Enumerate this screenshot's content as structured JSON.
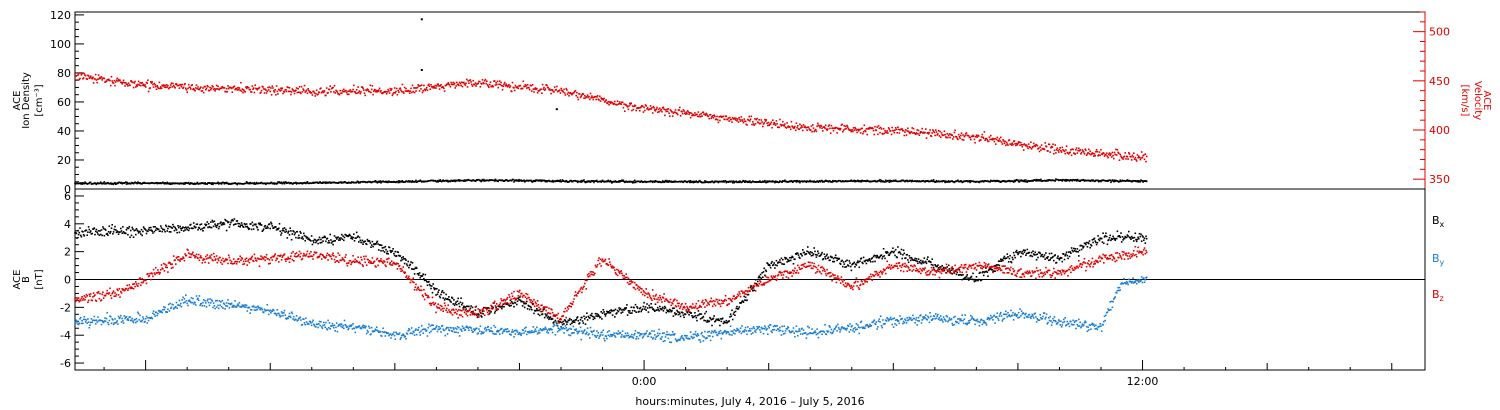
{
  "chart_data": [
    {
      "type": "scatter",
      "panel": "top",
      "left_axis": {
        "title_lines": [
          "ACE",
          "Ion Density"
        ],
        "unit": "[cm⁻³]",
        "ylim": [
          0,
          122
        ],
        "ticks": [
          0,
          20,
          40,
          60,
          80,
          100,
          120
        ],
        "minor_step": 5,
        "color": "#000000"
      },
      "right_axis": {
        "title_lines": [
          "ACE",
          "Velocity"
        ],
        "unit": "[km/s]",
        "ylim": [
          340,
          520
        ],
        "ticks": [
          350,
          400,
          450,
          500
        ],
        "minor_step": 10,
        "color": "#e00000"
      },
      "series": [
        {
          "color": "#000000",
          "axis": "left",
          "xrange": [
            -13.7,
            12.1
          ],
          "points": [
            [
              -13.5,
              4
            ],
            [
              -12,
              4
            ],
            [
              -10,
              3.8
            ],
            [
              -8,
              4.2
            ],
            [
              -6,
              5
            ],
            [
              -4,
              6
            ],
            [
              -2,
              5.5
            ],
            [
              0,
              5
            ],
            [
              2,
              5
            ],
            [
              4,
              5.2
            ],
            [
              6,
              5.5
            ],
            [
              8,
              5.2
            ],
            [
              10,
              6
            ],
            [
              12,
              5.5
            ]
          ],
          "outliers": [
            [
              -5.35,
              117
            ],
            [
              -5.35,
              82
            ],
            [
              -2.1,
              55
            ]
          ]
        },
        {
          "color": "#e00000",
          "axis": "right",
          "xrange": [
            -13.7,
            12.1
          ],
          "points": [
            [
              -13.7,
              455
            ],
            [
              -12,
              445
            ],
            [
              -10,
              442
            ],
            [
              -8,
              440
            ],
            [
              -6,
              440
            ],
            [
              -4,
              448
            ],
            [
              -2,
              440
            ],
            [
              -1,
              430
            ],
            [
              0,
              422
            ],
            [
              2,
              412
            ],
            [
              4,
              402
            ],
            [
              6,
              400
            ],
            [
              8,
              392
            ],
            [
              10,
              380
            ],
            [
              12,
              372
            ]
          ]
        }
      ]
    },
    {
      "type": "scatter",
      "panel": "bottom",
      "left_axis": {
        "title_lines": [
          "ACE",
          "B"
        ],
        "unit": "[nT]",
        "ylim": [
          -6.5,
          6.5
        ],
        "ticks": [
          -6,
          -4,
          -2,
          0,
          2,
          4,
          6
        ],
        "minor_step": 0.5,
        "color": "#000000"
      },
      "zero_line": true,
      "legend": [
        {
          "base": "B",
          "sub": "x",
          "color": "#000000"
        },
        {
          "base": "B",
          "sub": "y",
          "color": "#1a7fd4"
        },
        {
          "base": "B",
          "sub": "z",
          "color": "#e00000"
        }
      ],
      "series": [
        {
          "name": "Bx",
          "color": "#000000",
          "xrange": [
            -13.7,
            12.1
          ],
          "points": [
            [
              -13.7,
              3.3
            ],
            [
              -12.8,
              3.5
            ],
            [
              -11,
              3.7
            ],
            [
              -10,
              4
            ],
            [
              -9,
              3.8
            ],
            [
              -8,
              2.8
            ],
            [
              -7,
              3
            ],
            [
              -6,
              2
            ],
            [
              -5,
              -0.8
            ],
            [
              -4,
              -2.5
            ],
            [
              -3,
              -1.5
            ],
            [
              -2,
              -3.2
            ],
            [
              -1,
              -2.5
            ],
            [
              0,
              -2
            ],
            [
              1,
              -2.5
            ],
            [
              2,
              -3
            ],
            [
              3,
              1
            ],
            [
              4,
              2
            ],
            [
              5,
              1
            ],
            [
              6,
              2
            ],
            [
              7,
              1
            ],
            [
              8,
              0
            ],
            [
              9,
              2
            ],
            [
              10,
              1.5
            ],
            [
              11,
              3
            ],
            [
              12,
              3
            ]
          ]
        },
        {
          "name": "By",
          "color": "#1a7fd4",
          "xrange": [
            -13.7,
            12.1
          ],
          "points": [
            [
              -13.7,
              -3
            ],
            [
              -12,
              -2.8
            ],
            [
              -11,
              -1.5
            ],
            [
              -10,
              -1.8
            ],
            [
              -9,
              -2.2
            ],
            [
              -8,
              -3.2
            ],
            [
              -7,
              -3.4
            ],
            [
              -6,
              -4
            ],
            [
              -5,
              -3.5
            ],
            [
              -4,
              -3.6
            ],
            [
              -3,
              -3.8
            ],
            [
              -2,
              -3.5
            ],
            [
              -1,
              -4
            ],
            [
              0,
              -4
            ],
            [
              1,
              -4.2
            ],
            [
              2,
              -3.8
            ],
            [
              3,
              -3.5
            ],
            [
              4,
              -3.8
            ],
            [
              5,
              -3.5
            ],
            [
              6,
              -3
            ],
            [
              7,
              -2.8
            ],
            [
              8,
              -3
            ],
            [
              9,
              -2.5
            ],
            [
              10,
              -3
            ],
            [
              11,
              -3.5
            ],
            [
              11.5,
              -0.2
            ],
            [
              12,
              0
            ]
          ]
        },
        {
          "name": "Bz",
          "color": "#e00000",
          "xrange": [
            -13.7,
            12.1
          ],
          "points": [
            [
              -13.7,
              -1.5
            ],
            [
              -12.5,
              -0.8
            ],
            [
              -11,
              1.8
            ],
            [
              -10,
              1.3
            ],
            [
              -9,
              1.5
            ],
            [
              -8,
              1.8
            ],
            [
              -7,
              1.3
            ],
            [
              -6,
              1.2
            ],
            [
              -5,
              -2
            ],
            [
              -4,
              -2.5
            ],
            [
              -3,
              -1
            ],
            [
              -2,
              -2.8
            ],
            [
              -1,
              1.5
            ],
            [
              0,
              -1
            ],
            [
              1,
              -2
            ],
            [
              2,
              -1.5
            ],
            [
              3,
              0
            ],
            [
              4,
              1
            ],
            [
              5,
              -0.5
            ],
            [
              6,
              1
            ],
            [
              7,
              0.5
            ],
            [
              8,
              1
            ],
            [
              9,
              0.5
            ],
            [
              10,
              0.5
            ],
            [
              11,
              1.5
            ],
            [
              12,
              2
            ]
          ]
        }
      ]
    }
  ],
  "x_axis": {
    "ticks": [
      0,
      12
    ],
    "tick_labels": [
      "0:00",
      "12:00"
    ],
    "xlim": [
      -13.7,
      18.8
    ],
    "minor_step": 1,
    "title": "hours:minutes,  July  4, 2016 – July  5, 2016"
  }
}
